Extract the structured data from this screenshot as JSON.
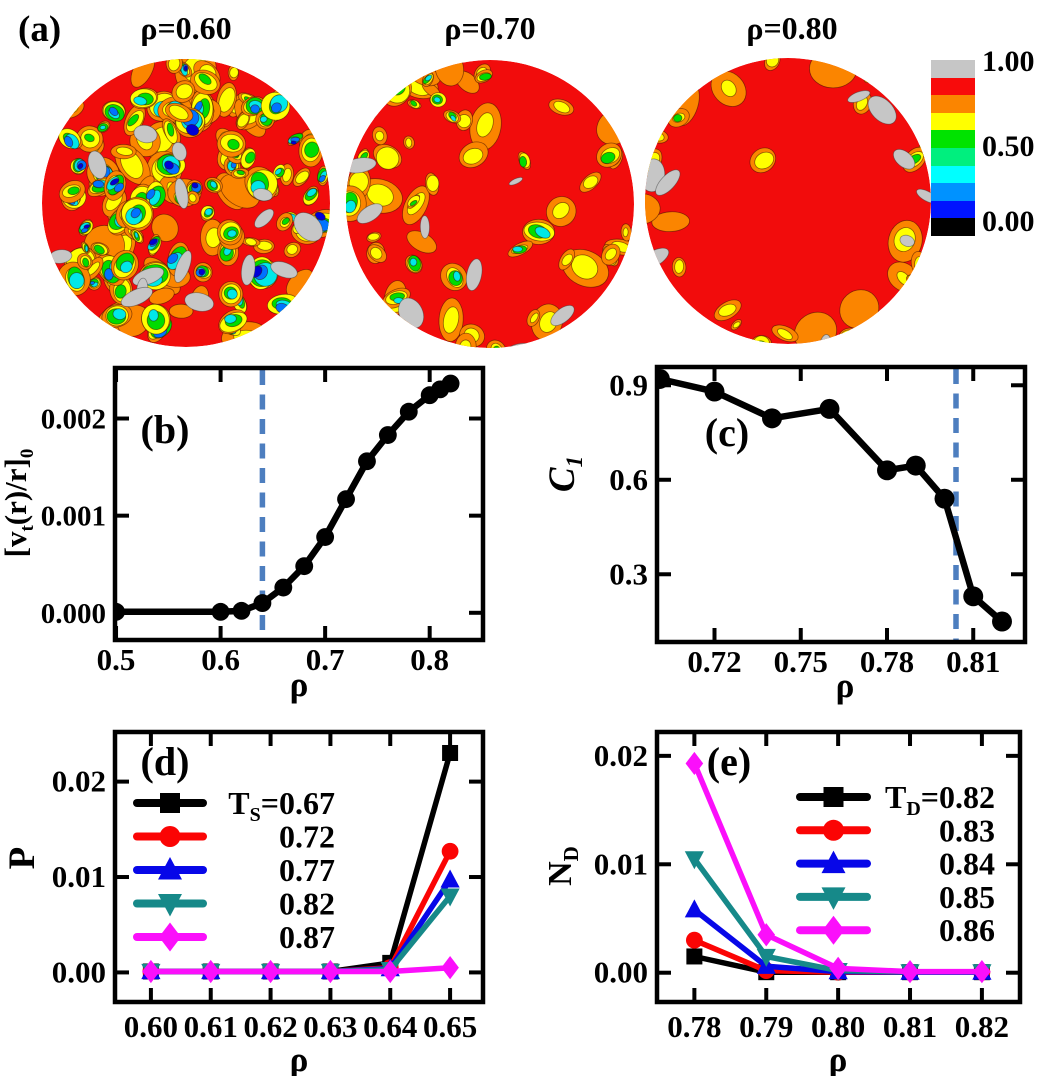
{
  "panel_a": {
    "label": "(a)",
    "plots": [
      {
        "title": "ρ=0.60",
        "disorder": "high"
      },
      {
        "title": "ρ=0.70",
        "disorder": "medium"
      },
      {
        "title": "ρ=0.80",
        "disorder": "rim"
      }
    ],
    "colorbar": {
      "labels": [
        "1.00",
        "0.50",
        "0.00"
      ],
      "colors": [
        "#c6c6c6",
        "#f80b0b",
        "#fb8500",
        "#ffff00",
        "#00e300",
        "#00ef7e",
        "#00ffff",
        "#0092ff",
        "#0014ff",
        "#000000"
      ]
    }
  },
  "chart_data": [
    {
      "id": "b",
      "type": "line",
      "panel_label": "(b)",
      "xlabel": "ρ",
      "ylabel": "[v_{t}(r)/r]_{0}",
      "xlim": [
        0.499,
        0.851
      ],
      "ylim": [
        -0.00028,
        0.00252
      ],
      "xticks": {
        "values": [
          0.5,
          0.6,
          0.7,
          0.8
        ],
        "labels": [
          "0.5",
          "0.6",
          "0.7",
          "0.8"
        ]
      },
      "yticks": {
        "values": [
          0,
          0.001,
          0.002
        ],
        "labels": [
          "0.000",
          "0.001",
          "0.002"
        ]
      },
      "vline": {
        "x": 0.64,
        "color": "#4d7ebf",
        "style": "dashed"
      },
      "grid": false,
      "series": [
        {
          "name": "[vt(r)/r]0",
          "color": "#000000",
          "marker": "circle",
          "x": [
            0.5,
            0.6,
            0.62,
            0.64,
            0.66,
            0.68,
            0.7,
            0.72,
            0.74,
            0.76,
            0.78,
            0.8,
            0.81,
            0.82
          ],
          "y": [
            1e-05,
            1e-05,
            2e-05,
            0.0001,
            0.00026,
            0.00048,
            0.00078,
            0.00117,
            0.00156,
            0.00183,
            0.00207,
            0.00224,
            0.0023,
            0.00236
          ]
        }
      ]
    },
    {
      "id": "c",
      "type": "line",
      "panel_label": "(c)",
      "xlabel": "ρ",
      "ylabel": "C_{1}",
      "ylabel_italic": true,
      "xlim": [
        0.7,
        0.828
      ],
      "ylim": [
        0.085,
        0.958
      ],
      "xticks": {
        "values": [
          0.72,
          0.75,
          0.78,
          0.81
        ],
        "labels": [
          "0.72",
          "0.75",
          "0.78",
          "0.81"
        ]
      },
      "yticks": {
        "values": [
          0.3,
          0.6,
          0.9
        ],
        "labels": [
          "0.3",
          "0.6",
          "0.9"
        ]
      },
      "vline": {
        "x": 0.804,
        "color": "#4d7ebf",
        "style": "dashed"
      },
      "grid": false,
      "series": [
        {
          "name": "C1",
          "color": "#000000",
          "marker": "circle",
          "x": [
            0.701,
            0.72,
            0.74,
            0.76,
            0.78,
            0.79,
            0.8,
            0.81,
            0.82
          ],
          "y": [
            0.92,
            0.88,
            0.795,
            0.825,
            0.63,
            0.645,
            0.54,
            0.23,
            0.15
          ]
        }
      ]
    },
    {
      "id": "d",
      "type": "line",
      "panel_label": "(d)",
      "xlabel": "ρ",
      "ylabel": "P",
      "xlim": [
        0.594,
        0.6555
      ],
      "ylim": [
        -0.0031,
        0.0252
      ],
      "xticks": {
        "values": [
          0.6,
          0.61,
          0.62,
          0.63,
          0.64,
          0.65
        ],
        "labels": [
          "0.60",
          "0.61",
          "0.62",
          "0.63",
          "0.64",
          "0.65"
        ]
      },
      "yticks": {
        "values": [
          0,
          0.01,
          0.02
        ],
        "labels": [
          "0.00",
          "0.01",
          "0.02"
        ]
      },
      "legend_position": "top-left",
      "grid": false,
      "series": [
        {
          "name": "Ts=0.67",
          "label": "T_{S}=0.67",
          "color": "#000000",
          "marker": "square",
          "x": [
            0.6,
            0.61,
            0.62,
            0.63,
            0.64,
            0.65
          ],
          "y": [
            0.0001,
            0.0001,
            0.0001,
            0.0001,
            0.001,
            0.023
          ]
        },
        {
          "name": "Ts=0.72",
          "label": "0.72",
          "color": "#fb0404",
          "marker": "circle",
          "x": [
            0.6,
            0.61,
            0.62,
            0.63,
            0.64,
            0.65
          ],
          "y": [
            0.0001,
            0.0001,
            0.0001,
            0.0001,
            0.0005,
            0.0127
          ]
        },
        {
          "name": "Ts=0.77",
          "label": "0.77",
          "color": "#0707e8",
          "marker": "triangle-up",
          "x": [
            0.6,
            0.61,
            0.62,
            0.63,
            0.64,
            0.65
          ],
          "y": [
            0.0001,
            0.0001,
            0.0001,
            0.0001,
            0.0004,
            0.0097
          ]
        },
        {
          "name": "Ts=0.82",
          "label": "0.82",
          "color": "#168989",
          "marker": "triangle-down",
          "x": [
            0.6,
            0.61,
            0.62,
            0.63,
            0.64,
            0.65
          ],
          "y": [
            0.0001,
            0.0001,
            0.0001,
            0.0001,
            0.0003,
            0.008
          ]
        },
        {
          "name": "Ts=0.87",
          "label": "0.87",
          "color": "#fb0ffb",
          "marker": "diamond",
          "x": [
            0.6,
            0.61,
            0.62,
            0.63,
            0.64,
            0.65
          ],
          "y": [
            0.0001,
            0.0001,
            0.0001,
            0.0001,
            0.0001,
            0.0005
          ]
        }
      ]
    },
    {
      "id": "e",
      "type": "line",
      "panel_label": "(e)",
      "xlabel": "ρ",
      "ylabel": "N_{D}",
      "xlim": [
        0.7748,
        0.8253
      ],
      "ylim": [
        -0.0027,
        0.0222
      ],
      "xticks": {
        "values": [
          0.78,
          0.79,
          0.8,
          0.81,
          0.82
        ],
        "labels": [
          "0.78",
          "0.79",
          "0.80",
          "0.81",
          "0.82"
        ]
      },
      "yticks": {
        "values": [
          0,
          0.01,
          0.02
        ],
        "labels": [
          "0.00",
          "0.01",
          "0.02"
        ]
      },
      "legend_position": "top-right",
      "grid": false,
      "series": [
        {
          "name": "Td=0.82",
          "label": "T_{D}=0.82",
          "color": "#000000",
          "marker": "square",
          "x": [
            0.78,
            0.79,
            0.8,
            0.81,
            0.82
          ],
          "y": [
            0.0015,
            5e-05,
            5e-05,
            5e-05,
            5e-05
          ]
        },
        {
          "name": "Td=0.83",
          "label": "0.83",
          "color": "#fb0404",
          "marker": "circle",
          "x": [
            0.78,
            0.79,
            0.8,
            0.81,
            0.82
          ],
          "y": [
            0.003,
            0.0002,
            5e-05,
            5e-05,
            5e-05
          ]
        },
        {
          "name": "Td=0.84",
          "label": "0.84",
          "color": "#0707e8",
          "marker": "triangle-up",
          "x": [
            0.78,
            0.79,
            0.8,
            0.81,
            0.82
          ],
          "y": [
            0.0058,
            0.0006,
            0.0001,
            5e-05,
            5e-05
          ]
        },
        {
          "name": "Td=0.85",
          "label": "0.85",
          "color": "#168989",
          "marker": "triangle-down",
          "x": [
            0.78,
            0.79,
            0.8,
            0.81,
            0.82
          ],
          "y": [
            0.0105,
            0.0015,
            0.0002,
            8e-05,
            8e-05
          ]
        },
        {
          "name": "Td=0.86",
          "label": "0.86",
          "color": "#fb0ffb",
          "marker": "diamond",
          "x": [
            0.78,
            0.79,
            0.8,
            0.81,
            0.82
          ],
          "y": [
            0.0193,
            0.0035,
            0.0004,
            0.0001,
            0.0001
          ]
        }
      ]
    }
  ]
}
